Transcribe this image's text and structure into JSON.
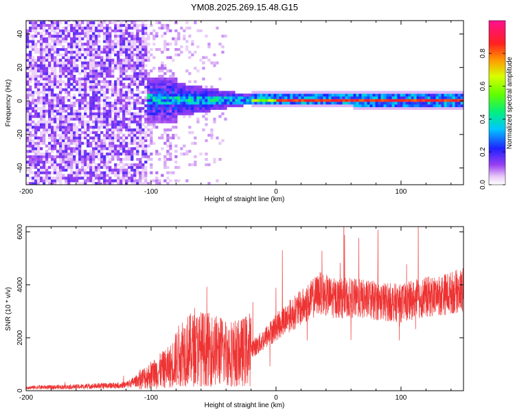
{
  "title": "YM08.2025.269.15.48.G15",
  "chart_data": [
    {
      "type": "heatmap",
      "xlabel": "Height of straight line (km)",
      "ylabel": "Frequency (Hz)",
      "xlim": [
        -200,
        150
      ],
      "ylim": [
        -50,
        48
      ],
      "x_ticks": [
        -200,
        -100,
        0,
        100
      ],
      "y_ticks": [
        -40,
        -20,
        0,
        20,
        40
      ],
      "colorbar": {
        "label": "Normalized spectral amplitude",
        "range": [
          0,
          1
        ],
        "ticks": [
          "0.0",
          "0.2",
          "0.4",
          "0.6",
          "0.8"
        ],
        "colormap": "rainbow-white-to-purple-to-red-to-magenta"
      },
      "description_regions": [
        {
          "x_from": -200,
          "x_to": -105,
          "pattern": "broadband noise"
        },
        {
          "x_from": -105,
          "x_to": -20,
          "pattern": "energy concentrating near 0 Hz"
        },
        {
          "x_from": -20,
          "x_to": 150,
          "pattern": "narrow line at 0 Hz"
        }
      ]
    },
    {
      "type": "line",
      "xlabel": "Height of straight line (km)",
      "ylabel": "SNR (10 * v/v)",
      "xlim": [
        -200,
        150
      ],
      "ylim": [
        0,
        6200
      ],
      "x_ticks": [
        -200,
        -100,
        0,
        100
      ],
      "y_ticks": [
        0,
        2000,
        4000,
        6000
      ],
      "color": "#ee3333",
      "envelope_points": [
        {
          "x": -200,
          "y": 120
        },
        {
          "x": -160,
          "y": 150
        },
        {
          "x": -120,
          "y": 220
        },
        {
          "x": -110,
          "y": 400
        },
        {
          "x": -100,
          "y": 600
        },
        {
          "x": -85,
          "y": 900
        },
        {
          "x": -75,
          "y": 1500
        },
        {
          "x": -60,
          "y": 1600
        },
        {
          "x": -45,
          "y": 1500
        },
        {
          "x": -30,
          "y": 1400
        },
        {
          "x": -15,
          "y": 1700
        },
        {
          "x": 0,
          "y": 2400
        },
        {
          "x": 10,
          "y": 2800
        },
        {
          "x": 25,
          "y": 3300
        },
        {
          "x": 35,
          "y": 3700
        },
        {
          "x": 45,
          "y": 3500
        },
        {
          "x": 60,
          "y": 3500
        },
        {
          "x": 80,
          "y": 3400
        },
        {
          "x": 100,
          "y": 3300
        },
        {
          "x": 115,
          "y": 3500
        },
        {
          "x": 130,
          "y": 3600
        },
        {
          "x": 150,
          "y": 3800
        }
      ]
    }
  ]
}
